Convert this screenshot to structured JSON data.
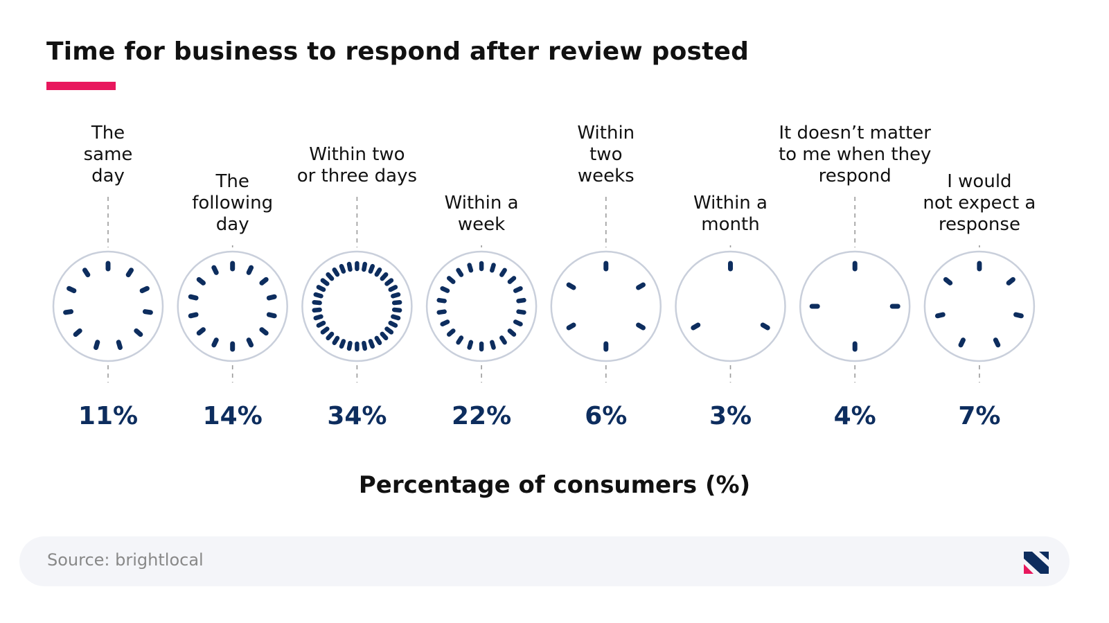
{
  "colors": {
    "accent": "#e8175d",
    "tick": "#0d2d5e",
    "ring": "#c9cfdb",
    "value": "#0d2d5e",
    "label": "#111111",
    "guide": "#9a9a9a"
  },
  "chart_data": {
    "type": "clock-dial",
    "title": "Time for business to respond after review posted",
    "xlabel": "Percentage of consumers (%)",
    "categories": [
      "The same day",
      "The following day",
      "Within two or three days",
      "Within a week",
      "Within two weeks",
      "Within a month",
      "It doesn’t matter to me when they respond",
      "I would not expect a response"
    ],
    "category_lines": [
      [
        "The",
        "same",
        "day"
      ],
      [
        "The",
        "following",
        "day"
      ],
      [
        "Within two",
        "or three days"
      ],
      [
        "Within a",
        "week"
      ],
      [
        "Within",
        "two",
        "weeks"
      ],
      [
        "Within a",
        "month"
      ],
      [
        "It doesn’t matter",
        "to me when they",
        "respond"
      ],
      [
        "I would",
        "not expect a",
        "response"
      ]
    ],
    "values": [
      11,
      14,
      34,
      22,
      6,
      3,
      4,
      7
    ],
    "value_labels": [
      "11%",
      "14%",
      "34%",
      "22%",
      "6%",
      "3%",
      "4%",
      "7%"
    ]
  },
  "source": {
    "text": "Source: brightlocal"
  },
  "logo": {
    "icon": "brightlocal-logo-icon"
  }
}
